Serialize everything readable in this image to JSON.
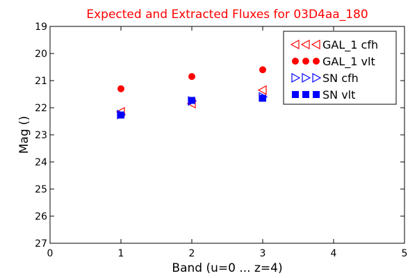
{
  "chart_data": {
    "type": "scatter",
    "title": "Expected and Extracted Fluxes for 03D4aa_180",
    "title_color": "#ff0000",
    "xlabel": "Band (u=0 ... z=4)",
    "ylabel": "Mag ()",
    "xlim": [
      0,
      5
    ],
    "ylim": [
      27,
      19
    ],
    "y_inverted": true,
    "x_ticks": [
      "0",
      "1",
      "2",
      "3",
      "4",
      "5"
    ],
    "y_ticks": [
      "19",
      "20",
      "21",
      "22",
      "23",
      "24",
      "25",
      "26",
      "27"
    ],
    "grid": false,
    "legend_position": "top-right",
    "series": [
      {
        "name": "GAL_1 cfh",
        "marker": "triangle-left-open",
        "color": "#ff0000",
        "x": [
          1,
          2,
          3
        ],
        "y": [
          22.15,
          21.85,
          21.35
        ]
      },
      {
        "name": "GAL_1 vlt",
        "marker": "circle-filled",
        "color": "#ff0000",
        "x": [
          1,
          2,
          3
        ],
        "y": [
          21.3,
          20.85,
          20.6
        ]
      },
      {
        "name": "SN cfh",
        "marker": "triangle-right-open",
        "color": "#0000ff",
        "x": [
          1,
          2,
          3
        ],
        "y": [
          22.25,
          21.75,
          21.6
        ]
      },
      {
        "name": "SN vlt",
        "marker": "square-filled",
        "color": "#0000ff",
        "x": [
          1,
          2,
          3
        ],
        "y": [
          22.27,
          21.73,
          21.65
        ]
      }
    ]
  }
}
